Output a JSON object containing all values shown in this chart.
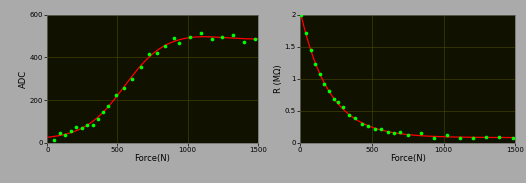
{
  "bg_color": "#111100",
  "grid_color": "#4a4a00",
  "outer_bg": "#aaaaaa",
  "left_chart": {
    "xlabel": "Force(N)",
    "ylabel": "ADC",
    "xlim": [
      0,
      1500
    ],
    "ylim": [
      0,
      600
    ],
    "xticks": [
      0,
      500,
      1000,
      1500
    ],
    "yticks": [
      0,
      200,
      400,
      600
    ]
  },
  "right_chart": {
    "xlabel": "Force(N)",
    "ylabel": "R (MΩ)",
    "xlim": [
      0,
      1500
    ],
    "ylim": [
      0,
      2
    ],
    "xticks": [
      0,
      500,
      1000,
      1500
    ],
    "yticks": [
      0,
      0.5,
      1.0,
      1.5,
      2.0
    ]
  },
  "red_line_color": "#ff0000",
  "green_dot_color": "#00ff00"
}
